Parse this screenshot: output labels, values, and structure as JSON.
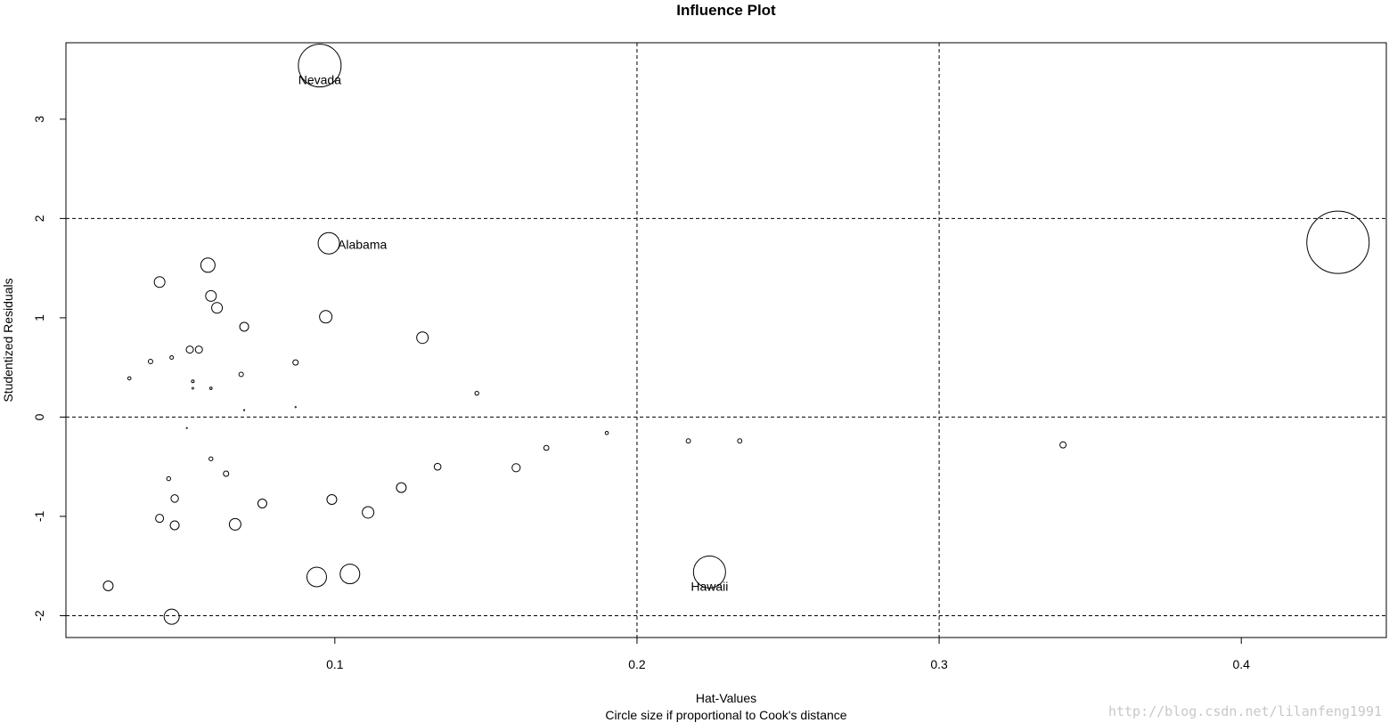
{
  "chart_data": {
    "type": "scatter",
    "title": "Influence Plot",
    "xlabel": "Hat-Values",
    "subtitle": "Circle size if proportional to Cook's distance",
    "ylabel": "Studentized Residuals",
    "xlim": [
      0.011,
      0.448
    ],
    "ylim": [
      -2.22,
      3.77
    ],
    "x_ticks": [
      0.1,
      0.2,
      0.3,
      0.4
    ],
    "x_tick_labels": [
      "0.1",
      "0.2",
      "0.3",
      "0.4"
    ],
    "y_ticks": [
      -2,
      -1,
      0,
      1,
      2,
      3
    ],
    "y_tick_labels": [
      "-2",
      "-1",
      "0",
      "1",
      "2",
      "3"
    ],
    "reference_lines": {
      "h": [
        -2,
        0,
        2
      ],
      "v": [
        0.2,
        0.3
      ],
      "style": "dashed"
    },
    "points": [
      {
        "x": 0.095,
        "y": 3.54,
        "size": 24,
        "label": "Nevada"
      },
      {
        "x": 0.098,
        "y": 1.75,
        "size": 12,
        "label": "Alabama"
      },
      {
        "x": 0.224,
        "y": -1.56,
        "size": 18,
        "label": "Hawaii"
      },
      {
        "x": 0.432,
        "y": 1.76,
        "size": 35,
        "label": ""
      },
      {
        "x": 0.058,
        "y": 1.53,
        "size": 8,
        "label": ""
      },
      {
        "x": 0.042,
        "y": 1.36,
        "size": 6,
        "label": ""
      },
      {
        "x": 0.059,
        "y": 1.22,
        "size": 6,
        "label": ""
      },
      {
        "x": 0.061,
        "y": 1.1,
        "size": 6,
        "label": ""
      },
      {
        "x": 0.097,
        "y": 1.01,
        "size": 7,
        "label": ""
      },
      {
        "x": 0.07,
        "y": 0.91,
        "size": 5,
        "label": ""
      },
      {
        "x": 0.129,
        "y": 0.8,
        "size": 6.5,
        "label": ""
      },
      {
        "x": 0.052,
        "y": 0.68,
        "size": 4,
        "label": ""
      },
      {
        "x": 0.055,
        "y": 0.68,
        "size": 4,
        "label": ""
      },
      {
        "x": 0.039,
        "y": 0.56,
        "size": 2.5,
        "label": ""
      },
      {
        "x": 0.046,
        "y": 0.6,
        "size": 2,
        "label": ""
      },
      {
        "x": 0.087,
        "y": 0.55,
        "size": 3,
        "label": ""
      },
      {
        "x": 0.069,
        "y": 0.43,
        "size": 2.5,
        "label": ""
      },
      {
        "x": 0.032,
        "y": 0.39,
        "size": 1.8,
        "label": ""
      },
      {
        "x": 0.053,
        "y": 0.36,
        "size": 1.5,
        "label": ""
      },
      {
        "x": 0.059,
        "y": 0.29,
        "size": 1.3,
        "label": ""
      },
      {
        "x": 0.053,
        "y": 0.29,
        "size": 1,
        "label": ""
      },
      {
        "x": 0.147,
        "y": 0.24,
        "size": 2.2,
        "label": ""
      },
      {
        "x": 0.07,
        "y": 0.07,
        "size": 0.7,
        "label": ""
      },
      {
        "x": 0.087,
        "y": 0.1,
        "size": 0.7,
        "label": ""
      },
      {
        "x": 0.051,
        "y": -0.11,
        "size": 0.7,
        "label": ""
      },
      {
        "x": 0.19,
        "y": -0.16,
        "size": 1.8,
        "label": ""
      },
      {
        "x": 0.217,
        "y": -0.24,
        "size": 2.4,
        "label": ""
      },
      {
        "x": 0.234,
        "y": -0.24,
        "size": 2.4,
        "label": ""
      },
      {
        "x": 0.341,
        "y": -0.28,
        "size": 3.5,
        "label": ""
      },
      {
        "x": 0.17,
        "y": -0.31,
        "size": 2.8,
        "label": ""
      },
      {
        "x": 0.059,
        "y": -0.42,
        "size": 2.2,
        "label": ""
      },
      {
        "x": 0.134,
        "y": -0.5,
        "size": 3.8,
        "label": ""
      },
      {
        "x": 0.16,
        "y": -0.51,
        "size": 4.6,
        "label": ""
      },
      {
        "x": 0.064,
        "y": -0.57,
        "size": 3,
        "label": ""
      },
      {
        "x": 0.045,
        "y": -0.62,
        "size": 2.2,
        "label": ""
      },
      {
        "x": 0.122,
        "y": -0.71,
        "size": 5.5,
        "label": ""
      },
      {
        "x": 0.047,
        "y": -0.82,
        "size": 4.2,
        "label": ""
      },
      {
        "x": 0.099,
        "y": -0.83,
        "size": 5.5,
        "label": ""
      },
      {
        "x": 0.076,
        "y": -0.87,
        "size": 5,
        "label": ""
      },
      {
        "x": 0.111,
        "y": -0.96,
        "size": 6.5,
        "label": ""
      },
      {
        "x": 0.042,
        "y": -1.02,
        "size": 4.5,
        "label": ""
      },
      {
        "x": 0.067,
        "y": -1.08,
        "size": 6.5,
        "label": ""
      },
      {
        "x": 0.047,
        "y": -1.09,
        "size": 5,
        "label": ""
      },
      {
        "x": 0.025,
        "y": -1.7,
        "size": 5.5,
        "label": ""
      },
      {
        "x": 0.094,
        "y": -1.61,
        "size": 11,
        "label": ""
      },
      {
        "x": 0.105,
        "y": -1.58,
        "size": 11,
        "label": ""
      },
      {
        "x": 0.046,
        "y": -2.01,
        "size": 8.5,
        "label": ""
      }
    ]
  },
  "watermark": "http://blog.csdn.net/lilanfeng1991"
}
